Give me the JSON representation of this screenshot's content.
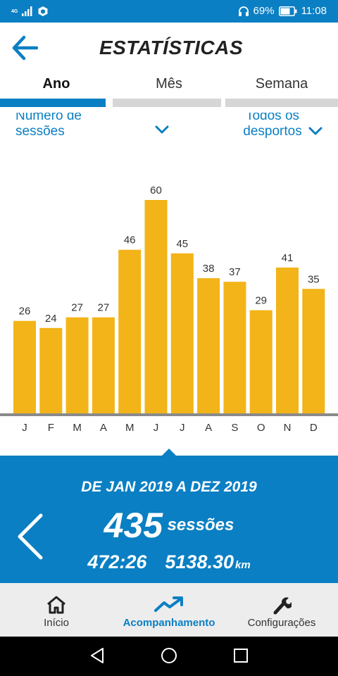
{
  "status_bar": {
    "network": "4G",
    "battery_percent": "69%",
    "time": "11:08",
    "icons": [
      "signal-icon",
      "app-notification-icon",
      "headphones-icon",
      "battery-icon"
    ]
  },
  "header": {
    "title": "ESTATÍSTICAS",
    "back_icon": "arrow-left-icon"
  },
  "tabs": [
    {
      "label": "Ano",
      "active": true
    },
    {
      "label": "Mês",
      "active": false
    },
    {
      "label": "Semana",
      "active": false
    }
  ],
  "filters": {
    "metric": "Número de sessões",
    "sport": "Todos os desportos"
  },
  "chart_data": {
    "type": "bar",
    "categories": [
      "J",
      "F",
      "M",
      "A",
      "M",
      "J",
      "J",
      "A",
      "S",
      "O",
      "N",
      "D"
    ],
    "values": [
      26,
      24,
      27,
      27,
      46,
      60,
      45,
      38,
      37,
      29,
      41,
      35
    ],
    "ylim": [
      0,
      60
    ],
    "color": "#f2b418",
    "grid": false,
    "title": "",
    "xlabel": "",
    "ylabel": ""
  },
  "summary": {
    "period": "DE JAN 2019 A DEZ 2019",
    "sessions_value": "435",
    "sessions_unit": "sessões",
    "duration": "472:26",
    "distance_value": "5138.30",
    "distance_unit": "km"
  },
  "bottom_nav": [
    {
      "label": "Início",
      "icon": "home-icon",
      "active": false
    },
    {
      "label": "Acompanhamento",
      "icon": "trend-up-icon",
      "active": true
    },
    {
      "label": "Configurações",
      "icon": "wrench-icon",
      "active": false
    }
  ],
  "colors": {
    "primary": "#0a7fc3",
    "bar": "#f2b418",
    "tab_inactive": "#d6d6d6",
    "nav_bg": "#ededed"
  }
}
